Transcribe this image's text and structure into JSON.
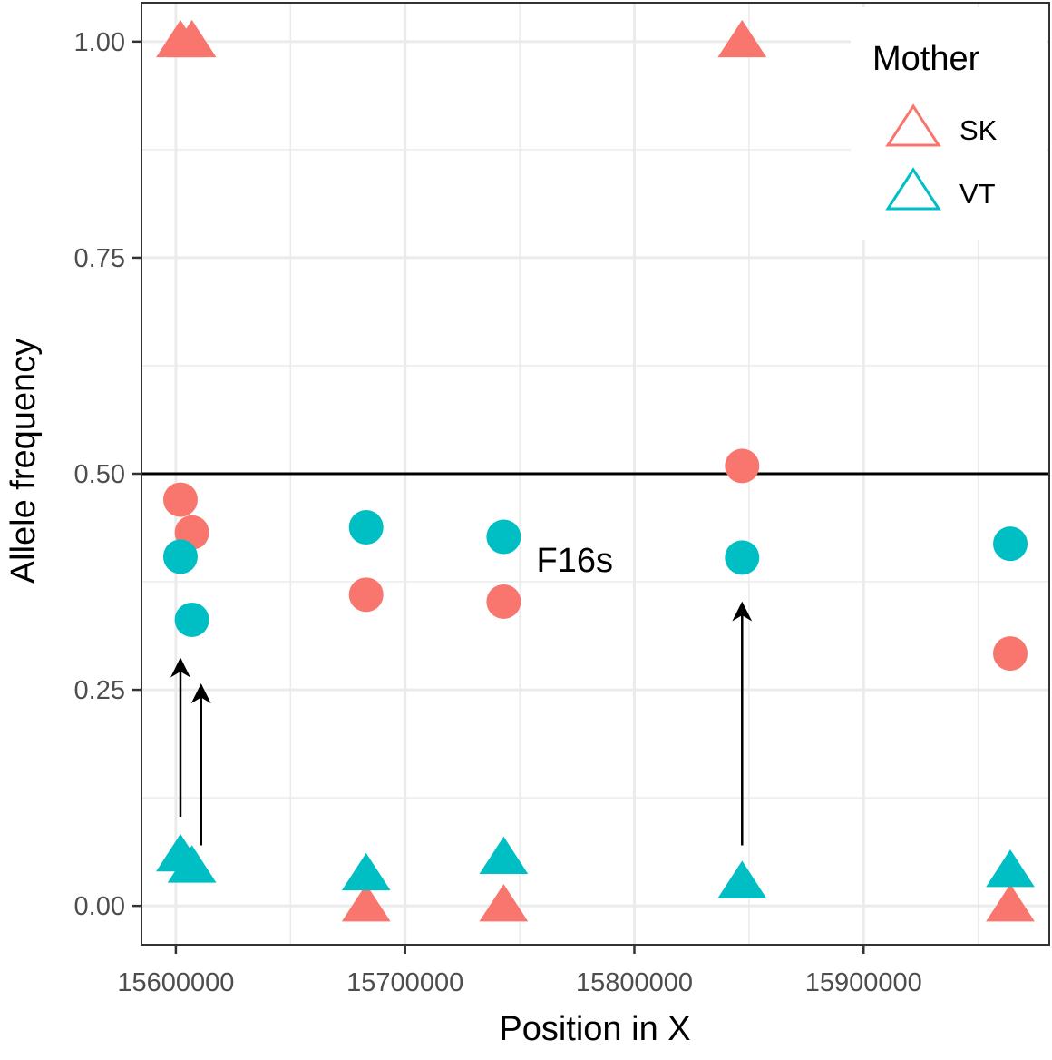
{
  "chart_data": {
    "type": "scatter",
    "xlabel": "Position in X",
    "ylabel": "Allele frequency",
    "xlim": [
      15585000,
      15981000
    ],
    "ylim": [
      -0.045,
      1.045
    ],
    "x_ticks": [
      {
        "value": 15600000,
        "label": "15600000"
      },
      {
        "value": 15700000,
        "label": "15700000"
      },
      {
        "value": 15800000,
        "label": "15800000"
      },
      {
        "value": 15900000,
        "label": "15900000"
      }
    ],
    "x_minor_ticks": [
      15650000,
      15750000,
      15850000,
      15950000
    ],
    "y_ticks": [
      {
        "value": 0.0,
        "label": "0.00"
      },
      {
        "value": 0.25,
        "label": "0.25"
      },
      {
        "value": 0.5,
        "label": "0.50"
      },
      {
        "value": 0.75,
        "label": "0.75"
      },
      {
        "value": 1.0,
        "label": "1.00"
      }
    ],
    "y_minor_ticks": [
      0.125,
      0.375,
      0.625,
      0.875
    ],
    "grid": true,
    "hline": 0.5,
    "legend": {
      "title": "Mother",
      "position": "top-right",
      "entries": [
        {
          "label": "SK",
          "color": "#F8766D"
        },
        {
          "label": "VT",
          "color": "#00BFC4"
        }
      ]
    },
    "series": [
      {
        "name": "SK",
        "color": "#F8766D",
        "triangles": [
          {
            "x": 15602000,
            "y": 1.0
          },
          {
            "x": 15607000,
            "y": 1.0
          },
          {
            "x": 15847000,
            "y": 1.0
          },
          {
            "x": 15683000,
            "y": 0.0
          },
          {
            "x": 15743000,
            "y": 0.0
          },
          {
            "x": 15964000,
            "y": 0.0
          }
        ],
        "circles": [
          {
            "x": 15602000,
            "y": 0.47
          },
          {
            "x": 15607000,
            "y": 0.432
          },
          {
            "x": 15683000,
            "y": 0.36
          },
          {
            "x": 15743000,
            "y": 0.352
          },
          {
            "x": 15847000,
            "y": 0.509
          },
          {
            "x": 15964000,
            "y": 0.292
          }
        ]
      },
      {
        "name": "VT",
        "color": "#00BFC4",
        "triangles": [
          {
            "x": 15602000,
            "y": 0.058
          },
          {
            "x": 15607000,
            "y": 0.045
          },
          {
            "x": 15683000,
            "y": 0.036
          },
          {
            "x": 15743000,
            "y": 0.055
          },
          {
            "x": 15847000,
            "y": 0.027
          },
          {
            "x": 15964000,
            "y": 0.04
          }
        ],
        "circles": [
          {
            "x": 15602000,
            "y": 0.404
          },
          {
            "x": 15607000,
            "y": 0.331
          },
          {
            "x": 15683000,
            "y": 0.438
          },
          {
            "x": 15743000,
            "y": 0.427
          },
          {
            "x": 15847000,
            "y": 0.403
          },
          {
            "x": 15964000,
            "y": 0.419
          }
        ]
      }
    ],
    "annotations": [
      {
        "text": "F16s",
        "x": 15774000,
        "y": 0.4
      }
    ],
    "arrows": [
      {
        "x": 15602000,
        "y_from": 0.103,
        "y_to": 0.285
      },
      {
        "x": 15611000,
        "y_from": 0.07,
        "y_to": 0.255
      },
      {
        "x": 15847000,
        "y_from": 0.07,
        "y_to": 0.35
      }
    ]
  }
}
